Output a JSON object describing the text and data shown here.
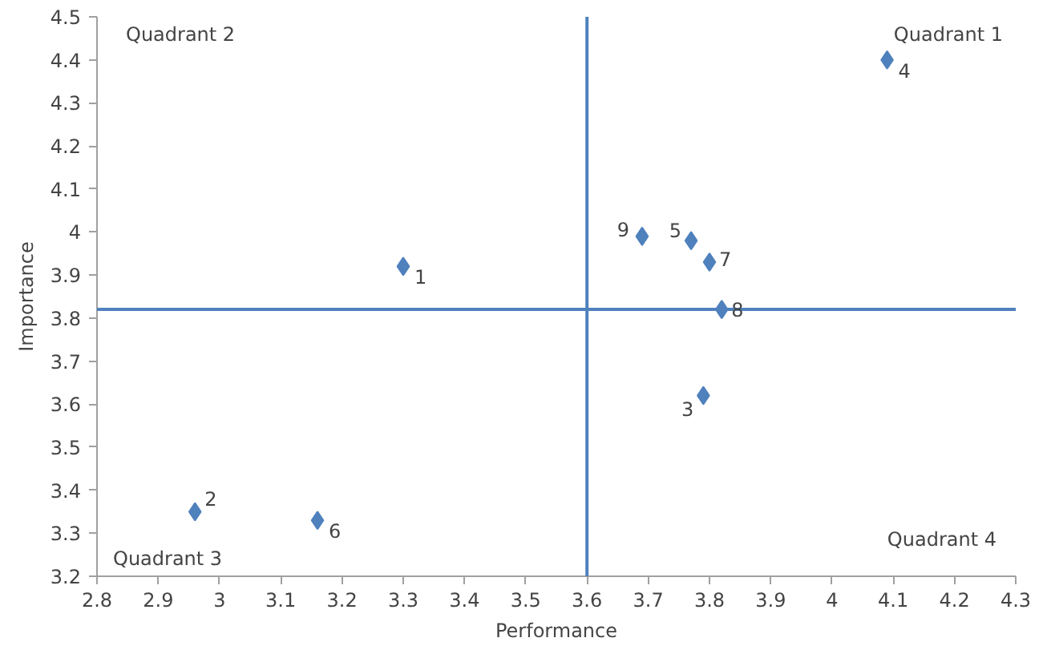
{
  "chart_data": {
    "type": "scatter",
    "xlabel": "Performance",
    "ylabel": "Importance",
    "x": [
      3.3,
      2.96,
      3.79,
      4.09,
      3.77,
      3.16,
      3.8,
      3.82,
      3.69
    ],
    "values": [
      3.92,
      3.35,
      3.62,
      4.4,
      3.98,
      3.33,
      3.93,
      3.82,
      3.99
    ],
    "color": "#4f81bd",
    "marker": "diamond",
    "grid": false,
    "xlim": [
      2.8,
      4.3
    ],
    "xticks": [
      2.8,
      2.9,
      3,
      3.1,
      3.2,
      3.3,
      3.4,
      3.5,
      3.6,
      3.7,
      3.8,
      3.9,
      4,
      4.1,
      4.2,
      4.3
    ],
    "ylim": [
      3.2,
      4.5
    ],
    "yticks": [
      3.2,
      3.3,
      3.4,
      3.5,
      3.6,
      3.7,
      3.8,
      3.9,
      4,
      4.1,
      4.2,
      4.3,
      4.4,
      4.5
    ],
    "ref_lines": [
      {
        "axis": "x",
        "value": 3.6,
        "color": "#4f81bd"
      },
      {
        "axis": "y",
        "value": 3.82,
        "color": "#4f81bd"
      }
    ],
    "annotations": [
      {
        "text": "1",
        "x": 3.3,
        "y": 3.92
      },
      {
        "text": "2",
        "x": 2.96,
        "y": 3.35
      },
      {
        "text": "3",
        "x": 3.79,
        "y": 3.62
      },
      {
        "text": "4",
        "x": 4.09,
        "y": 4.4
      },
      {
        "text": "5",
        "x": 3.77,
        "y": 3.98
      },
      {
        "text": "6",
        "x": 3.16,
        "y": 3.33
      },
      {
        "text": "7",
        "x": 3.8,
        "y": 3.93
      },
      {
        "text": "8",
        "x": 3.82,
        "y": 3.82
      },
      {
        "text": "9",
        "x": 3.69,
        "y": 3.99
      },
      "Quadrant 1",
      "Quadrant 2",
      "Quadrant 3",
      "Quadrant 4"
    ]
  }
}
